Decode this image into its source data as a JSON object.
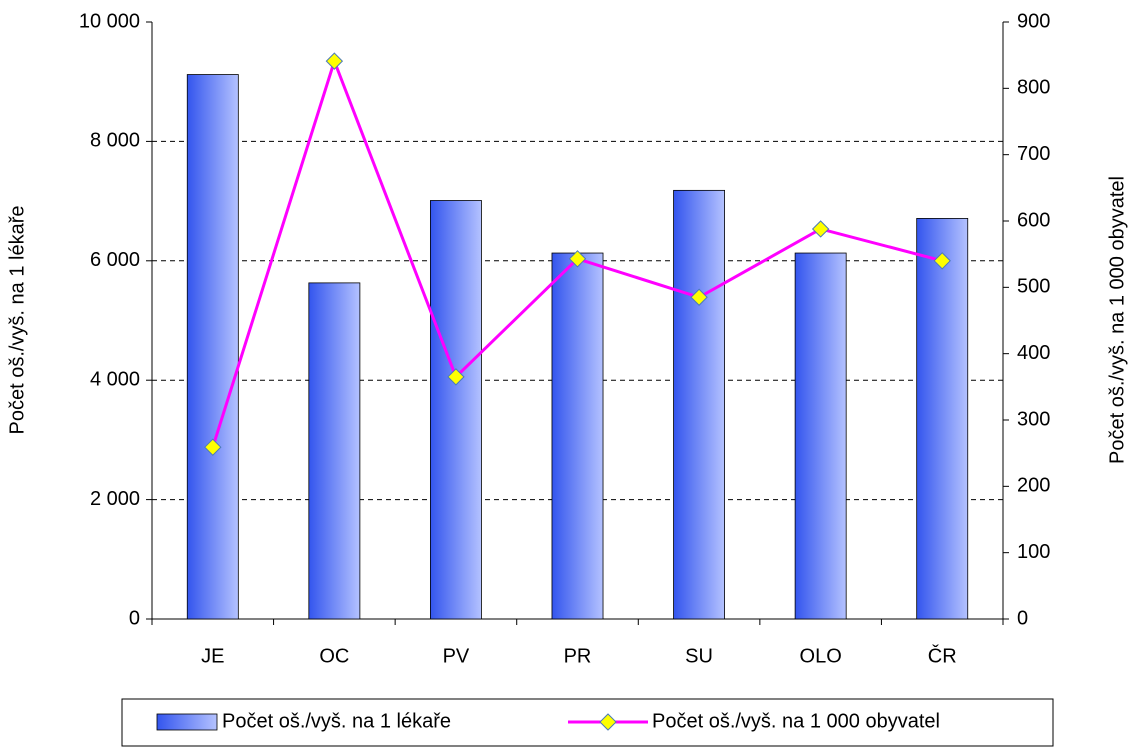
{
  "chart_data": {
    "type": "bar",
    "categories": [
      "JE",
      "OC",
      "PV",
      "PR",
      "SU",
      "OLO",
      "ČR"
    ],
    "series": [
      {
        "name": "Počet oš./vyš. na 1 lékaře",
        "color": "#3355ee",
        "values": [
          9120,
          5630,
          7010,
          6130,
          7180,
          6130,
          6710
        ]
      },
      {
        "name": "Počet oš./vyš. na 1 000 obyvatel",
        "type": "line",
        "axis": "y2",
        "color": "#ff00ff",
        "values": [
          259,
          841,
          365,
          543,
          485,
          588,
          540
        ]
      }
    ],
    "ylabel": "Počet oš./vyš. na 1 lékaře",
    "y2label": "Počet oš./vyš. na 1 000 obyvatel",
    "ylim": [
      0,
      10000
    ],
    "yticks": [
      0,
      {
        "value": 2000,
        "label": "2 000"
      },
      {
        "value": 4000,
        "label": "4 000"
      },
      {
        "value": 6000,
        "label": "6 000"
      },
      {
        "value": 8000,
        "label": "8 000"
      },
      {
        "value": 10000,
        "label": "10 000"
      }
    ],
    "y2lim": [
      0,
      900
    ],
    "y2ticks": [
      0,
      100,
      200,
      300,
      400,
      500,
      600,
      700,
      800,
      900
    ],
    "grid": true
  }
}
